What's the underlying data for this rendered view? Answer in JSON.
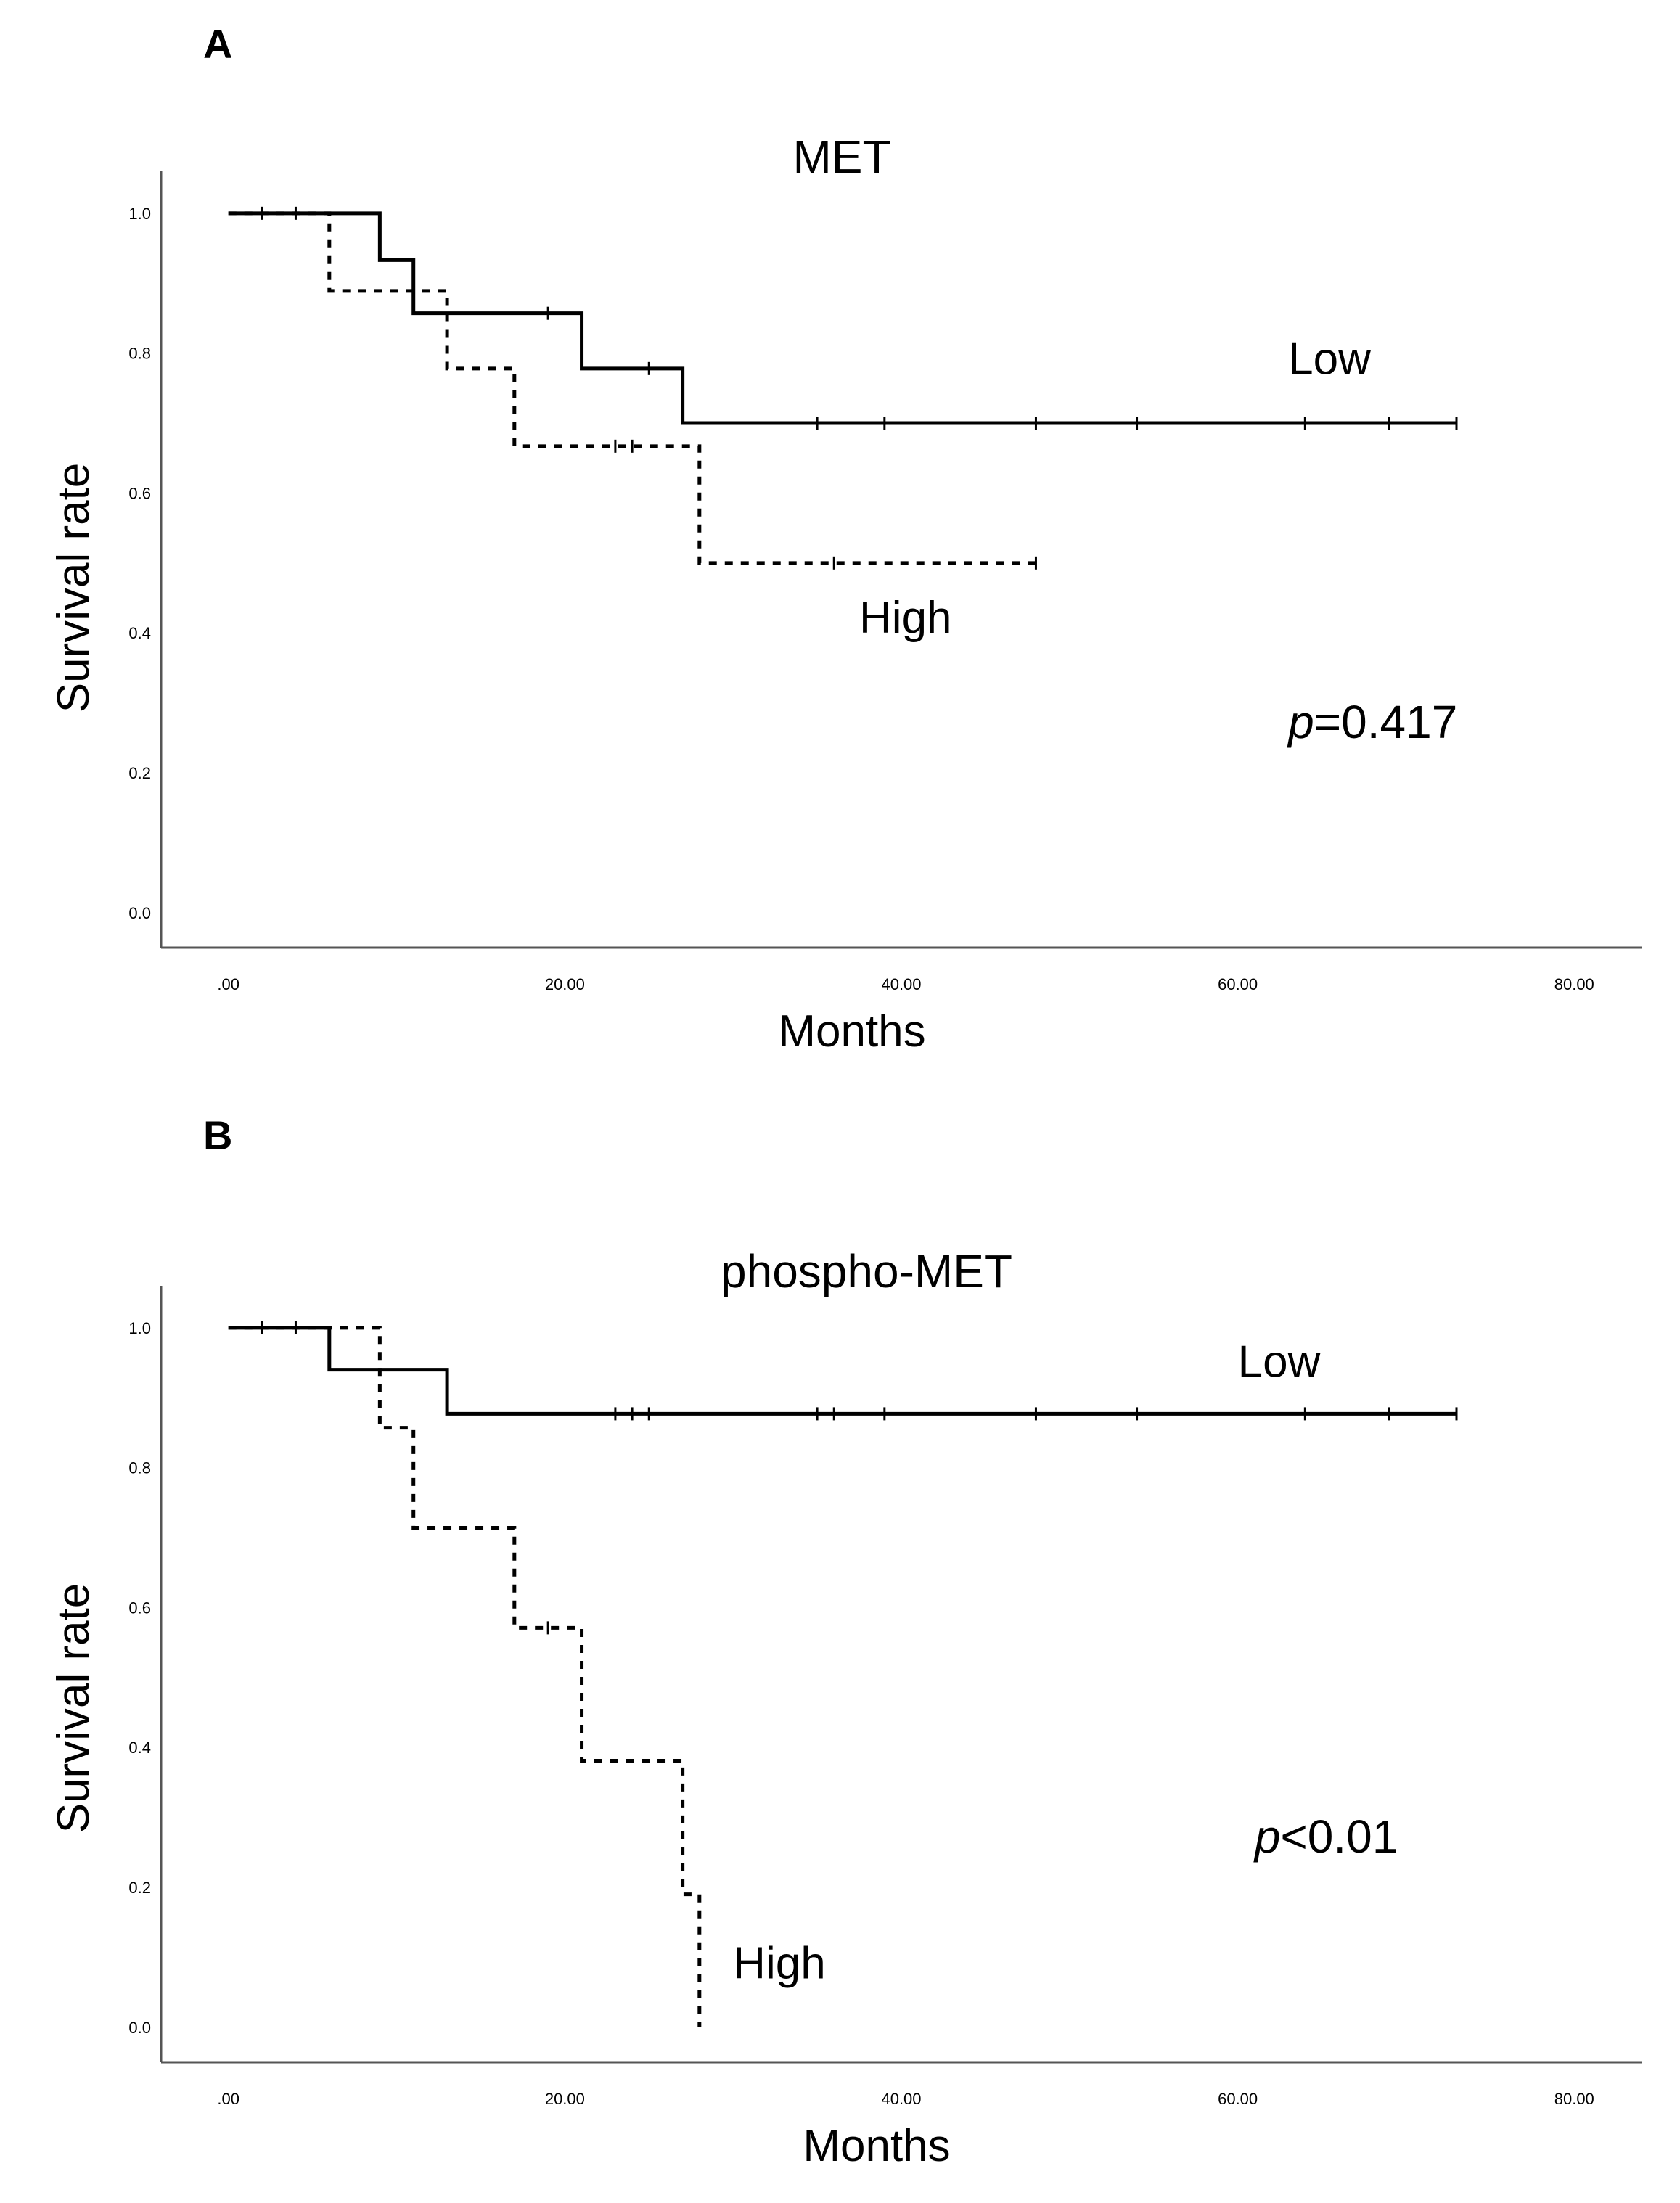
{
  "chart_data": [
    {
      "type": "line",
      "subtype": "kaplan-meier",
      "panel_label": "A",
      "title": "MET",
      "xlabel": "Months",
      "ylabel": "Survival rate",
      "xlim": [
        -4,
        84
      ],
      "ylim": [
        -0.05,
        1.06
      ],
      "xticks": [
        0,
        20,
        40,
        60,
        80
      ],
      "xtick_labels": [
        ".00",
        "20.00",
        "40.00",
        "60.00",
        "80.00"
      ],
      "yticks": [
        0,
        0.2,
        0.4,
        0.6,
        0.8,
        1.0
      ],
      "ytick_labels": [
        "0.0",
        "0.2",
        "0.4",
        "0.6",
        "0.8",
        "1.0"
      ],
      "annotation": {
        "italic": "p",
        "text": "=0.417",
        "x": 63,
        "y": 0.25
      },
      "series": [
        {
          "name": "Low",
          "label_pos": {
            "x": 63,
            "y": 0.77
          },
          "style": "solid",
          "steps": [
            [
              0,
              1.0
            ],
            [
              9,
              0.933
            ],
            [
              11,
              0.857
            ],
            [
              21,
              0.778
            ],
            [
              27,
              0.7
            ],
            [
              73,
              0.7
            ]
          ],
          "censored": [
            [
              2,
              1.0
            ],
            [
              4,
              1.0
            ],
            [
              19,
              0.857
            ],
            [
              25,
              0.778
            ],
            [
              35,
              0.7
            ],
            [
              39,
              0.7
            ],
            [
              48,
              0.7
            ],
            [
              54,
              0.7
            ],
            [
              64,
              0.7
            ],
            [
              69,
              0.7
            ],
            [
              73,
              0.7
            ]
          ]
        },
        {
          "name": "High",
          "label_pos": {
            "x": 37.5,
            "y": 0.4
          },
          "style": "dashed",
          "steps": [
            [
              0,
              1.0
            ],
            [
              6,
              0.889
            ],
            [
              13,
              0.778
            ],
            [
              17,
              0.667
            ],
            [
              28,
              0.5
            ],
            [
              48,
              0.5
            ]
          ],
          "censored": [
            [
              23,
              0.667
            ],
            [
              24,
              0.667
            ],
            [
              36,
              0.5
            ],
            [
              48,
              0.5
            ]
          ]
        }
      ]
    },
    {
      "type": "line",
      "subtype": "kaplan-meier",
      "panel_label": "B",
      "title": "phospho-MET",
      "xlabel": "Months",
      "ylabel": "Survival rate",
      "xlim": [
        -4,
        84
      ],
      "ylim": [
        -0.05,
        1.06
      ],
      "xticks": [
        0,
        20,
        40,
        60,
        80
      ],
      "xtick_labels": [
        ".00",
        "20.00",
        "40.00",
        "60.00",
        "80.00"
      ],
      "yticks": [
        0,
        0.2,
        0.4,
        0.6,
        0.8,
        1.0
      ],
      "ytick_labels": [
        "0.0",
        "0.2",
        "0.4",
        "0.6",
        "0.8",
        "1.0"
      ],
      "annotation": {
        "italic": "p",
        "text": "<0.01",
        "x": 61,
        "y": 0.25
      },
      "series": [
        {
          "name": "Low",
          "label_pos": {
            "x": 60,
            "y": 0.93
          },
          "style": "solid",
          "steps": [
            [
              0,
              1.0
            ],
            [
              6,
              0.94
            ],
            [
              13,
              0.877
            ],
            [
              73,
              0.877
            ]
          ],
          "censored": [
            [
              2,
              1.0
            ],
            [
              4,
              1.0
            ],
            [
              23,
              0.877
            ],
            [
              24,
              0.877
            ],
            [
              25,
              0.877
            ],
            [
              35,
              0.877
            ],
            [
              36,
              0.877
            ],
            [
              39,
              0.877
            ],
            [
              48,
              0.877
            ],
            [
              54,
              0.877
            ],
            [
              64,
              0.877
            ],
            [
              69,
              0.877
            ],
            [
              73,
              0.877
            ]
          ]
        },
        {
          "name": "High",
          "label_pos": {
            "x": 30,
            "y": 0.07
          },
          "style": "dashed",
          "steps": [
            [
              0,
              1.0
            ],
            [
              9,
              0.857
            ],
            [
              11,
              0.714
            ],
            [
              17,
              0.571
            ],
            [
              21,
              0.381
            ],
            [
              27,
              0.19
            ],
            [
              28,
              0.0
            ]
          ],
          "censored": [
            [
              19,
              0.571
            ]
          ]
        }
      ]
    }
  ]
}
